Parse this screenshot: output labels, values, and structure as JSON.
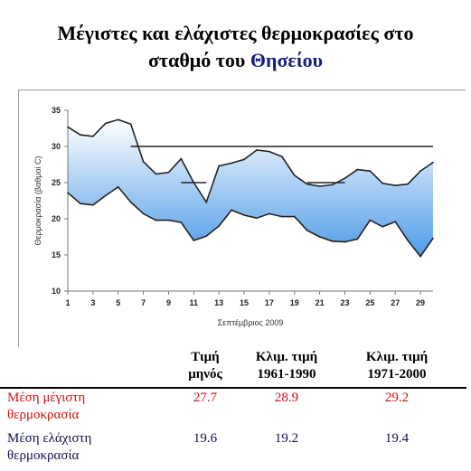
{
  "title": {
    "line1": "Μέγιστες και ελάχιστες θερμοκρασίες στο",
    "line2_prefix": "σταθμό του ",
    "line2_highlight": "Θησείου"
  },
  "chart_data": {
    "type": "area",
    "xlabel": "Σεπτέμβριος 2009",
    "ylabel": "Θερμοκρασία (βαθμοί C)",
    "x": [
      1,
      2,
      3,
      4,
      5,
      6,
      7,
      8,
      9,
      10,
      11,
      12,
      13,
      14,
      15,
      16,
      17,
      18,
      19,
      20,
      21,
      22,
      23,
      24,
      25,
      26,
      27,
      28,
      29,
      30
    ],
    "x_ticks": [
      1,
      3,
      5,
      7,
      9,
      11,
      13,
      15,
      17,
      19,
      21,
      23,
      25,
      27,
      29
    ],
    "ylim": [
      10,
      35
    ],
    "y_ticks": [
      10,
      15,
      20,
      25,
      30,
      35
    ],
    "series": [
      {
        "name": "",
        "values": [
          32.7,
          31.6,
          31.4,
          33.2,
          33.7,
          33.1,
          27.9,
          26.2,
          26.4,
          28.3,
          25.0,
          22.3,
          27.3,
          27.7,
          28.2,
          29.5,
          29.3,
          28.6,
          26.0,
          24.8,
          24.5,
          24.7,
          25.6,
          26.8,
          26.6,
          24.9,
          24.6,
          24.8,
          26.6,
          27.8
        ]
      },
      {
        "name": "",
        "values": [
          23.6,
          22.1,
          21.9,
          23.2,
          24.4,
          22.3,
          20.7,
          19.8,
          19.8,
          19.5,
          17.0,
          17.6,
          19.0,
          21.2,
          20.5,
          20.1,
          20.7,
          20.3,
          20.3,
          18.4,
          17.5,
          16.9,
          16.8,
          17.2,
          19.8,
          18.9,
          19.6,
          17.0,
          14.8,
          17.3
        ]
      }
    ],
    "reference_lines": [
      {
        "y": 30.0,
        "x_from": 6,
        "x_to": 30
      },
      {
        "y": 25.0,
        "x_from": 10,
        "x_to": 12
      },
      {
        "y": 25.0,
        "x_from": 20,
        "x_to": 23
      }
    ],
    "fill_top_color": "#ffffff",
    "fill_bottom_color": "#4d9be8",
    "line_color": "#222222",
    "grid": false
  },
  "table": {
    "headers": [
      {
        "line1": "Τιμή",
        "line2": "μηνός"
      },
      {
        "line1": "Κλιμ. τιμή",
        "line2": "1961-1990"
      },
      {
        "line1": "Κλιμ. τιμή",
        "line2": "1971-2000"
      }
    ],
    "rows": [
      {
        "label_line1": "Μέση μέγιστη",
        "label_line2": "θερμοκρασία",
        "values": [
          "27.7",
          "28.9",
          "29.2"
        ],
        "color": "#d21010"
      },
      {
        "label_line1": "Μέση ελάχιστη",
        "label_line2": "θερμοκρασία",
        "values": [
          "19.6",
          "19.2",
          "19.4"
        ],
        "color": "#101050"
      }
    ]
  }
}
